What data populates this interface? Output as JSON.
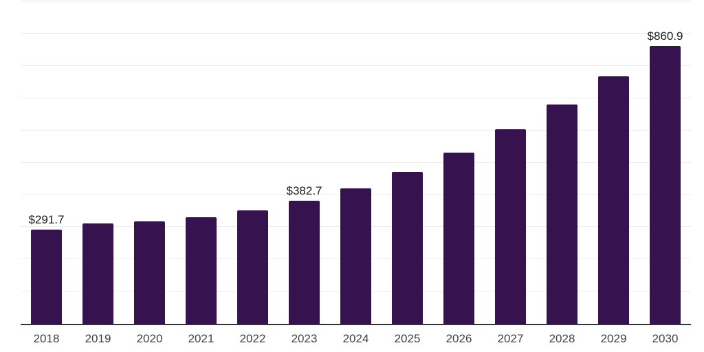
{
  "chart_data": {
    "type": "bar",
    "title": "",
    "xlabel": "",
    "ylabel": "",
    "categories": [
      "2018",
      "2019",
      "2020",
      "2021",
      "2022",
      "2023",
      "2024",
      "2025",
      "2026",
      "2027",
      "2028",
      "2029",
      "2030"
    ],
    "values": [
      291.7,
      310.5,
      317.0,
      331.5,
      352.0,
      382.7,
      421.0,
      471.5,
      530.5,
      603.0,
      680.0,
      768.5,
      860.9
    ],
    "value_labels": {
      "2018": "$291.7",
      "2023": "$382.7",
      "2030": "$860.9"
    },
    "currency_prefix": "$",
    "ylim": [
      0,
      1000
    ],
    "grid_step": 100,
    "grid": "horizontal-only, unlabeled",
    "legend": "none",
    "bar_color": "#36124E",
    "axis_line_color": "#333333",
    "grid_color": "#ececec",
    "top_grid_color": "#dcdcdc",
    "value_label_color": "#1a1a1a",
    "tick_label_color": "#404040"
  }
}
